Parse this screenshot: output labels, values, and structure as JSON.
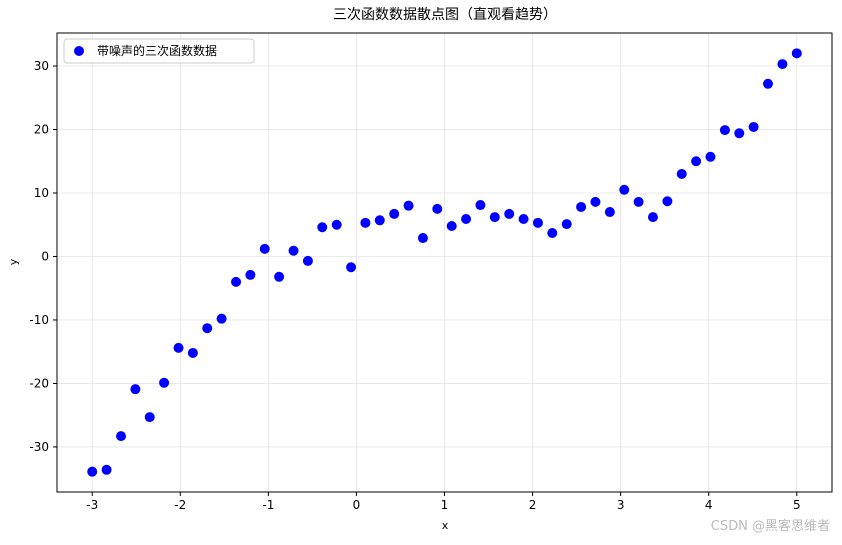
{
  "chart_data": {
    "type": "scatter",
    "title": "三次函数数据散点图（直观看趋势）",
    "x_label": "x",
    "y_label": "y",
    "x": [
      -3,
      -2.837,
      -2.673,
      -2.51,
      -2.347,
      -2.184,
      -2.02,
      -1.857,
      -1.694,
      -1.531,
      -1.367,
      -1.204,
      -1.041,
      -0.878,
      -0.714,
      -0.551,
      -0.388,
      -0.224,
      -0.061,
      0.102,
      0.265,
      0.429,
      0.592,
      0.755,
      0.918,
      1.082,
      1.245,
      1.408,
      1.571,
      1.735,
      1.898,
      2.061,
      2.224,
      2.388,
      2.551,
      2.714,
      2.878,
      3.041,
      3.204,
      3.367,
      3.531,
      3.694,
      3.857,
      4.02,
      4.184,
      4.347,
      4.51,
      4.673,
      4.837,
      5
    ],
    "series": [
      {
        "name": "带噪声的三次函数数据",
        "color": "#0000ff",
        "values": [
          -33.9,
          -33.6,
          -28.3,
          -20.9,
          -25.3,
          -19.9,
          -14.4,
          -15.2,
          -11.3,
          -9.8,
          -4.0,
          -2.9,
          1.2,
          -3.2,
          0.9,
          -0.7,
          4.6,
          5.0,
          -1.7,
          5.3,
          5.7,
          6.7,
          8.0,
          2.9,
          7.5,
          4.8,
          5.9,
          8.1,
          6.2,
          6.7,
          5.9,
          5.3,
          3.7,
          5.1,
          7.8,
          8.6,
          7.0,
          10.5,
          8.6,
          6.2,
          8.7,
          13.0,
          15.0,
          15.7,
          19.9,
          19.4,
          20.4,
          27.2,
          30.3,
          32.0
        ]
      }
    ],
    "xlim": [
      -3.4,
      5.4
    ],
    "xticks": [
      -3,
      -2,
      -1,
      0,
      1,
      2,
      3,
      4,
      5
    ],
    "ylim": [
      -37.1,
      35.2
    ],
    "yticks": [
      -30,
      -20,
      -10,
      0,
      10,
      20,
      30
    ],
    "grid": true,
    "legend": "upper left",
    "watermark": "CSDN @黑客思维者"
  }
}
